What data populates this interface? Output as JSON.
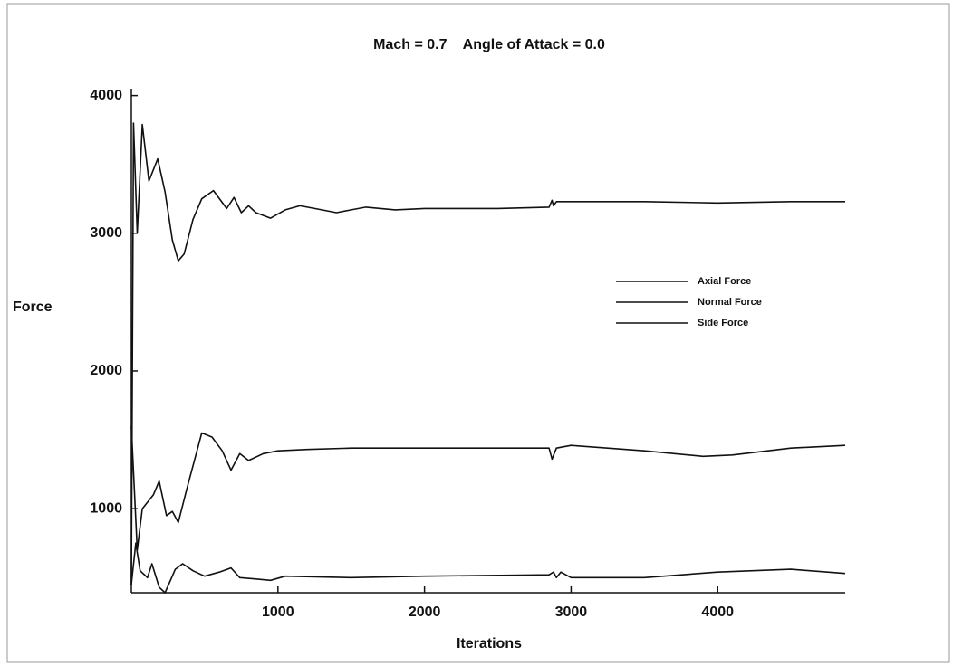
{
  "chart_data": {
    "type": "line",
    "title": "Mach = 0.7    Angle of Attack = 0.0",
    "x_label": "Iterations",
    "y_label": "Force",
    "xlim": [
      0,
      4870
    ],
    "ylim": [
      390,
      4050
    ],
    "xticks": [
      1000,
      2000,
      3000,
      4000
    ],
    "yticks": [
      1000,
      2000,
      3000,
      4000
    ],
    "grid": false,
    "legend_position": "center-right",
    "series": [
      {
        "name": "Axial Force",
        "color": "#111111",
        "x": [
          0,
          15,
          40,
          75,
          120,
          180,
          230,
          280,
          320,
          360,
          420,
          480,
          560,
          650,
          700,
          750,
          800,
          850,
          950,
          1050,
          1150,
          1250,
          1400,
          1500,
          1600,
          1800,
          2000,
          2500,
          2850,
          2870,
          2880,
          2900,
          3500,
          4000,
          4500,
          4870
        ],
        "values": [
          450,
          3800,
          3000,
          3790,
          3380,
          3540,
          3300,
          2950,
          2800,
          2850,
          3100,
          3250,
          3310,
          3180,
          3260,
          3150,
          3200,
          3150,
          3110,
          3170,
          3200,
          3180,
          3150,
          3170,
          3190,
          3170,
          3180,
          3180,
          3190,
          3240,
          3200,
          3230,
          3230,
          3220,
          3230,
          3230
        ]
      },
      {
        "name": "Normal Force",
        "color": "#111111",
        "x": [
          0,
          40,
          75,
          150,
          190,
          240,
          280,
          320,
          380,
          430,
          480,
          550,
          620,
          680,
          740,
          800,
          900,
          1000,
          1200,
          1500,
          2000,
          2850,
          2870,
          2900,
          3000,
          3500,
          3900,
          4100,
          4500,
          4870
        ],
        "values": [
          1600,
          700,
          1000,
          1100,
          1200,
          950,
          980,
          900,
          1150,
          1350,
          1550,
          1520,
          1420,
          1280,
          1400,
          1350,
          1400,
          1420,
          1430,
          1440,
          1440,
          1440,
          1360,
          1440,
          1460,
          1420,
          1380,
          1390,
          1440,
          1460
        ]
      },
      {
        "name": "Side Force",
        "color": "#111111",
        "x": [
          0,
          30,
          60,
          110,
          140,
          190,
          230,
          300,
          350,
          420,
          500,
          600,
          680,
          740,
          850,
          950,
          1050,
          1500,
          2000,
          2850,
          2880,
          2900,
          2930,
          3000,
          3500,
          4000,
          4500,
          4870
        ],
        "values": [
          450,
          750,
          550,
          500,
          600,
          430,
          390,
          560,
          600,
          550,
          510,
          540,
          570,
          500,
          490,
          480,
          510,
          500,
          510,
          520,
          540,
          500,
          540,
          500,
          500,
          540,
          560,
          530
        ]
      }
    ]
  }
}
